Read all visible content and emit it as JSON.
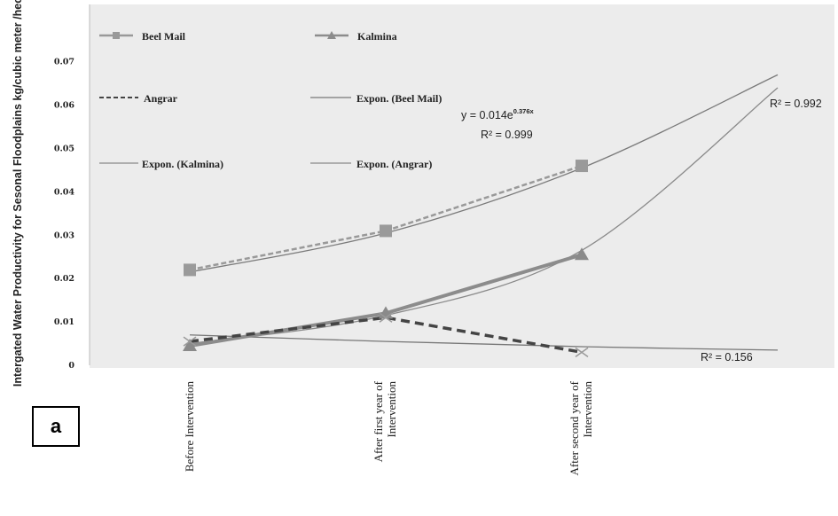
{
  "chart_data": {
    "type": "line",
    "ylabel": "Intergated Water Productivity for Sesonal Floodplains kg/cubic meter /hectare",
    "ylim": [
      0,
      0.08
    ],
    "yticks": [
      "0",
      "0.01",
      "0.02",
      "0.03",
      "0.04",
      "0.05",
      "0.06",
      "0.07"
    ],
    "categories": [
      "Before Intervention",
      "After first year of Intervention",
      "After second year of Intervention"
    ],
    "series": [
      {
        "name": "Beel Mail",
        "values": [
          0.022,
          0.031,
          0.046
        ],
        "color": "#999999",
        "marker": "square"
      },
      {
        "name": "Kalmina",
        "values": [
          0.0045,
          0.012,
          0.0255
        ],
        "color": "#8c8c8c",
        "marker": "triangle"
      },
      {
        "name": "Angrar",
        "values": [
          0.0055,
          0.011,
          0.003
        ],
        "color": "#444444",
        "marker": "x",
        "dashed": true
      }
    ],
    "trendlines": [
      {
        "name": "Expon. (Beel Mail)",
        "values": [
          0.0215,
          0.0305,
          0.0455,
          0.067
        ]
      },
      {
        "name": "Expon. (Kalmina)",
        "values": [
          0.005,
          0.0115,
          0.0265,
          0.064
        ]
      },
      {
        "name": "Expon. (Angrar)",
        "values": [
          0.007,
          0.0055,
          0.0043,
          0.0035
        ]
      }
    ],
    "annotations": {
      "equation_main": "y = 0.014e",
      "equation_exp": "0.376x",
      "r2_beel": "R² = 0.999",
      "r2_kalmina": "R² = 0.992",
      "r2_angrar": "R² = 0.156"
    },
    "legend_position": "top (inside plot, 2 columns)",
    "panel_label": "a",
    "grid": false
  }
}
